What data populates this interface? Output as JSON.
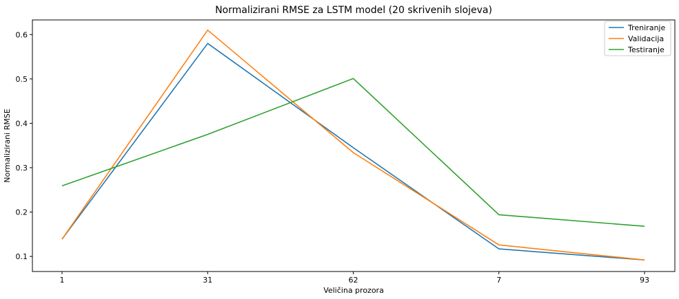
{
  "chart_data": {
    "type": "line",
    "title": "Normalizirani RMSE za LSTM model (20 skrivenih slojeva)",
    "xlabel": "Veličina prozora",
    "ylabel": "Normalizirani RMSE",
    "categories": [
      "1",
      "31",
      "62",
      "7",
      "93"
    ],
    "yticks": [
      0.1,
      0.2,
      0.3,
      0.4,
      0.5,
      0.6
    ],
    "ytick_labels": [
      "0.1",
      "0.2",
      "0.3",
      "0.4",
      "0.5",
      "0.6"
    ],
    "ylim": [
      0.066,
      0.633
    ],
    "grid": false,
    "legend_position": "top-right",
    "series": [
      {
        "name": "Treniranje",
        "color": "#1f77b4",
        "values": [
          0.139,
          0.58,
          0.345,
          0.117,
          0.092
        ]
      },
      {
        "name": "Validacija",
        "color": "#ff7f0e",
        "values": [
          0.139,
          0.61,
          0.334,
          0.126,
          0.092
        ]
      },
      {
        "name": "Testiranje",
        "color": "#2ca02c",
        "values": [
          0.259,
          0.375,
          0.501,
          0.194,
          0.168
        ]
      }
    ]
  }
}
